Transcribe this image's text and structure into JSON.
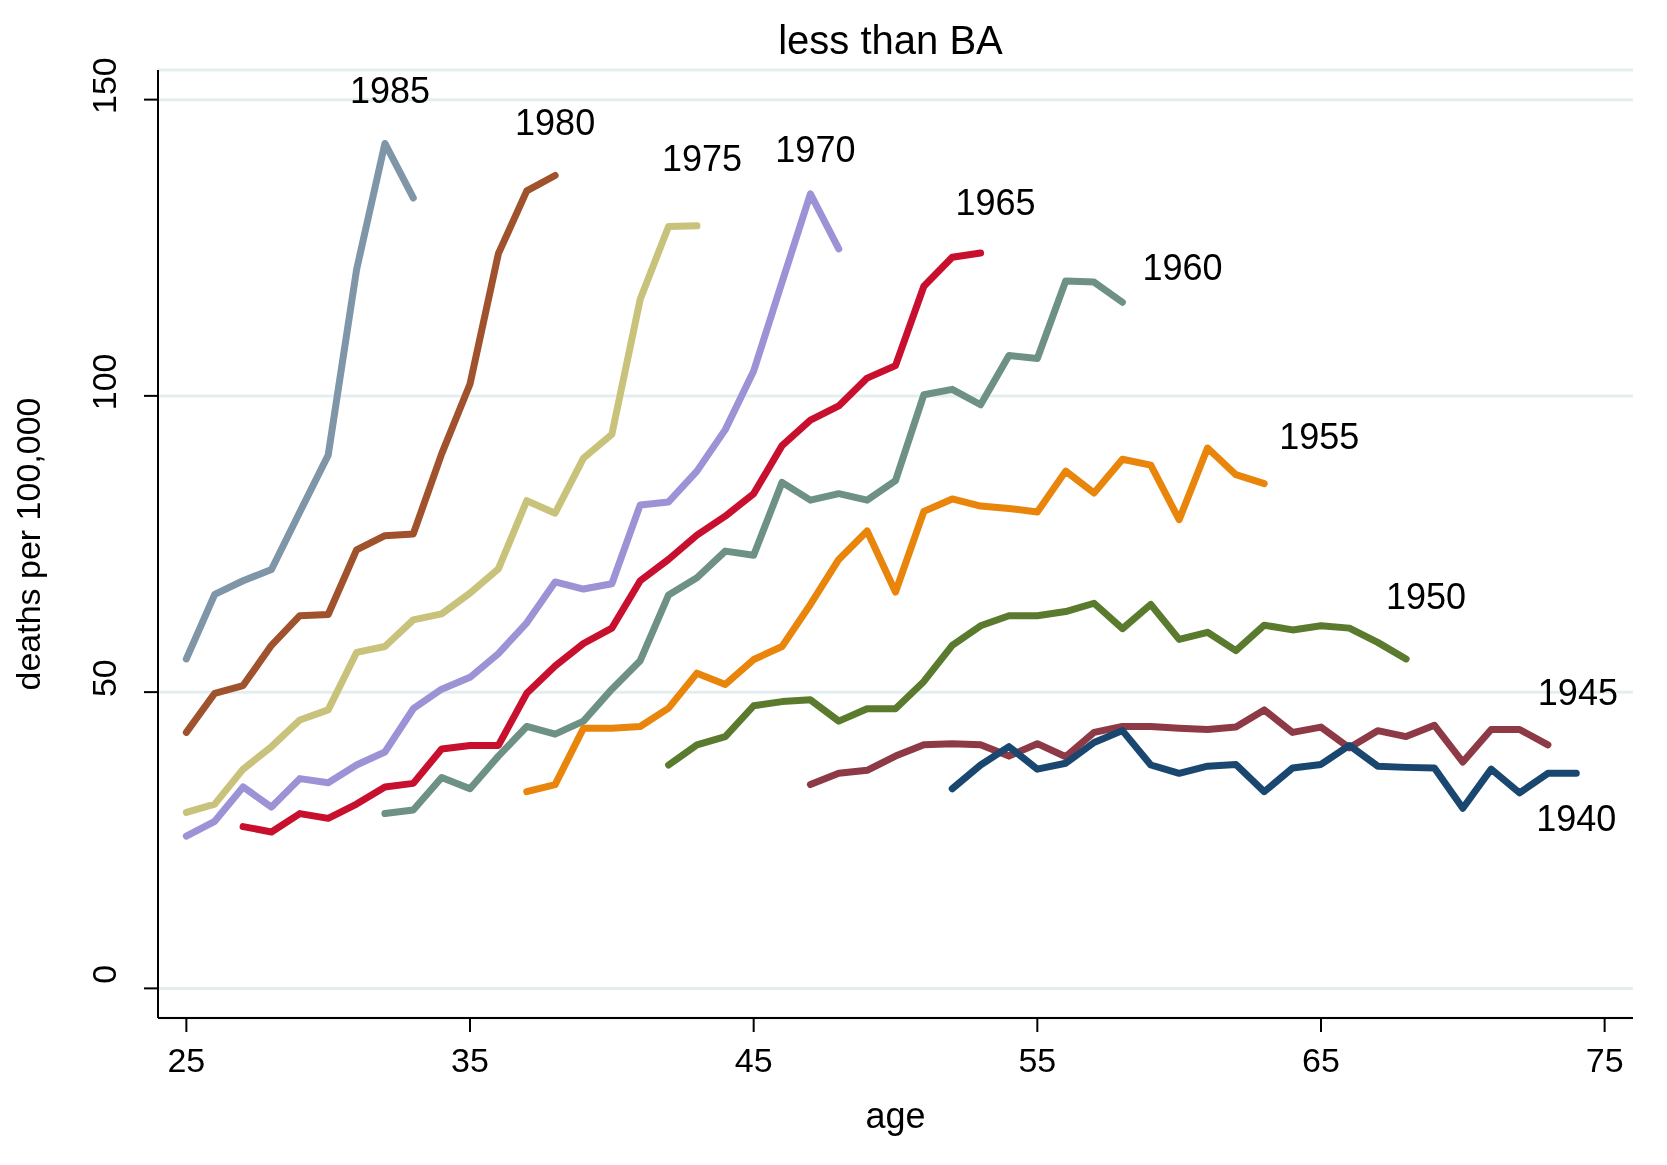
{
  "chart_data": {
    "type": "line",
    "title": "less than BA",
    "xlabel": "age",
    "ylabel": "deaths per 100,000",
    "xlim": [
      24,
      76
    ],
    "ylim": [
      -5,
      155
    ],
    "xticks": [
      25,
      35,
      45,
      55,
      65,
      75
    ],
    "yticks": [
      0,
      50,
      100,
      150
    ],
    "grid": "y",
    "legend": false,
    "marker": "none",
    "line_style": "solid",
    "series": [
      {
        "name": "1985",
        "color": "#7f95a8",
        "x": [
          25,
          26,
          27,
          28,
          29,
          30,
          31,
          32,
          33
        ],
        "values": [
          55.6,
          66.5,
          68.8,
          70.7,
          80.4,
          90,
          121.3,
          142.6,
          133.4
        ]
      },
      {
        "name": "1980",
        "color": "#a0522d",
        "x": [
          25,
          26,
          27,
          28,
          29,
          30,
          31,
          32,
          33,
          34,
          35,
          36,
          37,
          38
        ],
        "values": [
          43.2,
          49.8,
          51.1,
          57.9,
          62.9,
          63.1,
          74,
          76.4,
          76.7,
          90.2,
          102,
          124,
          134.6,
          137.2
        ]
      },
      {
        "name": "1975",
        "color": "#c9c27a",
        "x": [
          25,
          26,
          27,
          28,
          29,
          30,
          31,
          32,
          33,
          34,
          35,
          36,
          37,
          38,
          39,
          40,
          41,
          42,
          43
        ],
        "values": [
          29.7,
          31.1,
          37,
          40.8,
          45.3,
          47,
          56.7,
          57.7,
          62.2,
          63.2,
          66.7,
          70.8,
          82.3,
          80.2,
          89.5,
          93.5,
          116.3,
          128.6,
          128.7
        ]
      },
      {
        "name": "1970",
        "color": "#9b93d6",
        "x": [
          25,
          26,
          27,
          28,
          29,
          30,
          31,
          32,
          33,
          34,
          35,
          36,
          37,
          38,
          39,
          40,
          41,
          42,
          43,
          44,
          45,
          46,
          47,
          48
        ],
        "values": [
          25.7,
          28.2,
          34,
          30.6,
          35.4,
          34.7,
          37.7,
          39.9,
          47.2,
          50.5,
          52.5,
          56.5,
          61.7,
          68.6,
          67.4,
          68.3,
          81.6,
          82.1,
          87.3,
          94.3,
          104.2,
          119.2,
          134.1,
          124.8
        ]
      },
      {
        "name": "1965",
        "color": "#c8102e",
        "x": [
          27,
          28,
          29,
          30,
          31,
          32,
          33,
          34,
          35,
          36,
          37,
          38,
          39,
          40,
          41,
          42,
          43,
          44,
          45,
          46,
          47,
          48,
          49,
          50,
          51,
          52,
          53
        ],
        "values": [
          27.3,
          26.4,
          29.5,
          28.7,
          31.1,
          34,
          34.6,
          40.4,
          41,
          41,
          49.8,
          54.4,
          58.2,
          60.8,
          68.8,
          72.4,
          76.5,
          79.7,
          83.5,
          91.6,
          95.9,
          98.3,
          103,
          105.1,
          118.5,
          123.4,
          124.1
        ]
      },
      {
        "name": "1960",
        "color": "#6e9185",
        "x": [
          32,
          33,
          34,
          35,
          36,
          37,
          38,
          39,
          40,
          41,
          42,
          43,
          44,
          45,
          46,
          47,
          48,
          49,
          50,
          51,
          52,
          53,
          54,
          55,
          56,
          57,
          58
        ],
        "values": [
          29.5,
          30.1,
          35.6,
          33.7,
          39.2,
          44.2,
          42.9,
          45.1,
          50.5,
          55.3,
          66.4,
          69.3,
          73.8,
          73.1,
          85.4,
          82.4,
          83.5,
          82.4,
          85.7,
          100.2,
          101.1,
          98.5,
          106.8,
          106.3,
          119.4,
          119.2,
          115.8
        ]
      },
      {
        "name": "1955",
        "color": "#e8850a",
        "x": [
          37,
          38,
          39,
          40,
          41,
          42,
          43,
          44,
          45,
          46,
          47,
          48,
          49,
          50,
          51,
          52,
          53,
          54,
          55,
          56,
          57,
          58,
          59,
          60,
          61,
          62,
          63
        ],
        "values": [
          33.2,
          34.4,
          43.9,
          43.9,
          44.2,
          47.3,
          53.2,
          51.3,
          55.5,
          57.7,
          64.8,
          72.4,
          77.2,
          66.9,
          80.5,
          82.6,
          81.4,
          81,
          80.4,
          87.3,
          83.6,
          89.3,
          88.3,
          79.1,
          91.2,
          86.7,
          85.2
        ]
      },
      {
        "name": "1950",
        "color": "#5a7a2e",
        "x": [
          42,
          43,
          44,
          45,
          46,
          47,
          48,
          49,
          50,
          51,
          52,
          53,
          54,
          55,
          56,
          57,
          58,
          59,
          60,
          61,
          62,
          63,
          64,
          65,
          66,
          67,
          68
        ],
        "values": [
          37.7,
          41.1,
          42.5,
          47.7,
          48.4,
          48.7,
          45.1,
          47.2,
          47.2,
          51.8,
          57.9,
          61.2,
          62.9,
          62.9,
          63.6,
          65,
          60.7,
          64.8,
          58.9,
          60.1,
          57,
          61.3,
          60.5,
          61.2,
          60.8,
          58.4,
          55.6
        ]
      },
      {
        "name": "1945",
        "color": "#8e3a46",
        "x": [
          47,
          48,
          49,
          50,
          51,
          52,
          53,
          54,
          55,
          56,
          57,
          58,
          59,
          60,
          61,
          62,
          63,
          64,
          65,
          66,
          67,
          68,
          69,
          70,
          71,
          72,
          73
        ],
        "values": [
          34.4,
          36.3,
          36.8,
          39.2,
          41.1,
          41.3,
          41.1,
          39.2,
          41.3,
          39.1,
          43.2,
          44.2,
          44.2,
          43.9,
          43.7,
          44.1,
          47,
          43.2,
          44.1,
          40.6,
          43.5,
          42.5,
          44.4,
          38.2,
          43.7,
          43.7,
          41.1
        ]
      },
      {
        "name": "1940",
        "color": "#1a476f",
        "x": [
          52,
          53,
          54,
          55,
          56,
          57,
          58,
          59,
          60,
          61,
          62,
          63,
          64,
          65,
          66,
          67,
          68,
          69,
          70,
          71,
          72,
          73,
          74
        ],
        "values": [
          33.7,
          37.7,
          40.8,
          37,
          38,
          41.5,
          43.5,
          37.7,
          36.3,
          37.5,
          37.8,
          33.2,
          37.2,
          37.8,
          41,
          37.5,
          37.3,
          37.2,
          30.4,
          37,
          33,
          36.3,
          36.3
        ]
      }
    ]
  }
}
